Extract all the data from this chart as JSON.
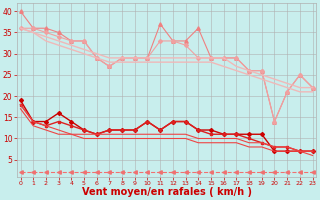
{
  "background_color": "#c8eeed",
  "grid_color": "#b0b0b0",
  "xlabel": "Vent moyen/en rafales ( km/h )",
  "xlabel_color": "#cc0000",
  "xlabel_fontsize": 7,
  "tick_color": "#cc0000",
  "yticks": [
    5,
    10,
    15,
    20,
    25,
    30,
    35,
    40
  ],
  "xticks": [
    0,
    1,
    2,
    3,
    4,
    5,
    6,
    7,
    8,
    9,
    10,
    11,
    12,
    13,
    14,
    15,
    16,
    17,
    18,
    19,
    20,
    21,
    22,
    23
  ],
  "ylim": [
    1,
    42
  ],
  "xlim": [
    -0.3,
    23.3
  ],
  "series_light": [
    {
      "x": [
        0,
        1,
        2,
        3,
        4,
        5,
        6,
        7,
        8,
        9,
        10,
        11,
        12,
        13,
        14,
        15,
        16,
        17,
        18,
        19,
        20,
        21,
        22,
        23
      ],
      "y": [
        40,
        36,
        36,
        35,
        33,
        33,
        29,
        27,
        29,
        29,
        29,
        37,
        33,
        33,
        36,
        29,
        29,
        29,
        26,
        26,
        14,
        21,
        25,
        22
      ],
      "color": "#f08080",
      "lw": 0.8,
      "marker": "^",
      "ms": 2.5
    },
    {
      "x": [
        0,
        1,
        2,
        3,
        4,
        5,
        6,
        7,
        8,
        9,
        10,
        11,
        12,
        13,
        14,
        15,
        16,
        17,
        18,
        19,
        20,
        21,
        22,
        23
      ],
      "y": [
        36,
        36,
        35,
        34,
        33,
        33,
        29,
        27,
        29,
        29,
        29,
        33,
        33,
        32,
        29,
        29,
        29,
        29,
        26,
        26,
        14,
        21,
        25,
        22
      ],
      "color": "#f0a0a0",
      "lw": 0.8,
      "marker": "D",
      "ms": 2.0
    },
    {
      "x": [
        0,
        1,
        2,
        3,
        4,
        5,
        6,
        7,
        8,
        9,
        10,
        11,
        12,
        13,
        14,
        15,
        16,
        17,
        18,
        19,
        20,
        21,
        22,
        23
      ],
      "y": [
        36,
        35,
        34,
        33,
        32,
        31,
        30,
        29,
        29,
        29,
        29,
        29,
        29,
        29,
        29,
        29,
        29,
        27,
        26,
        25,
        24,
        23,
        22,
        22
      ],
      "color": "#f0b8b8",
      "lw": 1.0,
      "marker": null,
      "ms": 0
    },
    {
      "x": [
        0,
        1,
        2,
        3,
        4,
        5,
        6,
        7,
        8,
        9,
        10,
        11,
        12,
        13,
        14,
        15,
        16,
        17,
        18,
        19,
        20,
        21,
        22,
        23
      ],
      "y": [
        36,
        35,
        33,
        32,
        31,
        30,
        29,
        28,
        28,
        28,
        28,
        28,
        28,
        28,
        28,
        28,
        27,
        26,
        25,
        24,
        23,
        22,
        21,
        21
      ],
      "color": "#f0b8b8",
      "lw": 1.0,
      "marker": null,
      "ms": 0
    }
  ],
  "series_dark": [
    {
      "x": [
        0,
        1,
        2,
        3,
        4,
        5,
        6,
        7,
        8,
        9,
        10,
        11,
        12,
        13,
        14,
        15,
        16,
        17,
        18,
        19,
        20,
        21,
        22,
        23
      ],
      "y": [
        19,
        14,
        14,
        16,
        14,
        12,
        11,
        12,
        12,
        12,
        14,
        12,
        14,
        14,
        12,
        12,
        11,
        11,
        11,
        11,
        7,
        7,
        7,
        7
      ],
      "color": "#cc0000",
      "lw": 1.0,
      "marker": "D",
      "ms": 2.0
    },
    {
      "x": [
        0,
        1,
        2,
        3,
        4,
        5,
        6,
        7,
        8,
        9,
        10,
        11,
        12,
        13,
        14,
        15,
        16,
        17,
        18,
        19,
        20,
        21,
        22,
        23
      ],
      "y": [
        18,
        14,
        13,
        14,
        13,
        12,
        11,
        12,
        12,
        12,
        14,
        12,
        14,
        14,
        12,
        11,
        11,
        11,
        10,
        9,
        8,
        8,
        7,
        7
      ],
      "color": "#dd2020",
      "lw": 1.0,
      "marker": "s",
      "ms": 2.0
    },
    {
      "x": [
        0,
        1,
        2,
        3,
        4,
        5,
        6,
        7,
        8,
        9,
        10,
        11,
        12,
        13,
        14,
        15,
        16,
        17,
        18,
        19,
        20,
        21,
        22,
        23
      ],
      "y": [
        18,
        14,
        13,
        12,
        11,
        11,
        11,
        11,
        11,
        11,
        11,
        11,
        11,
        11,
        10,
        10,
        10,
        10,
        9,
        9,
        8,
        8,
        7,
        7
      ],
      "color": "#ee4444",
      "lw": 0.8,
      "marker": null,
      "ms": 0
    },
    {
      "x": [
        0,
        1,
        2,
        3,
        4,
        5,
        6,
        7,
        8,
        9,
        10,
        11,
        12,
        13,
        14,
        15,
        16,
        17,
        18,
        19,
        20,
        21,
        22,
        23
      ],
      "y": [
        17,
        13,
        12,
        11,
        11,
        10,
        10,
        10,
        10,
        10,
        10,
        10,
        10,
        10,
        9,
        9,
        9,
        9,
        8,
        8,
        7,
        7,
        7,
        6
      ],
      "color": "#ee4444",
      "lw": 0.8,
      "marker": null,
      "ms": 0
    }
  ],
  "series_dashed": {
    "x": [
      0,
      1,
      2,
      3,
      4,
      5,
      6,
      7,
      8,
      9,
      10,
      11,
      12,
      13,
      14,
      15,
      16,
      17,
      18,
      19,
      20,
      21,
      22,
      23
    ],
    "y": [
      2,
      2,
      2,
      2,
      2,
      2,
      2,
      2,
      2,
      2,
      2,
      2,
      2,
      2,
      2,
      2,
      2,
      2,
      2,
      2,
      2,
      2,
      2,
      2
    ],
    "color": "#f07070",
    "lw": 0.8,
    "linestyle": "--",
    "marker": "<",
    "ms": 2.5
  }
}
